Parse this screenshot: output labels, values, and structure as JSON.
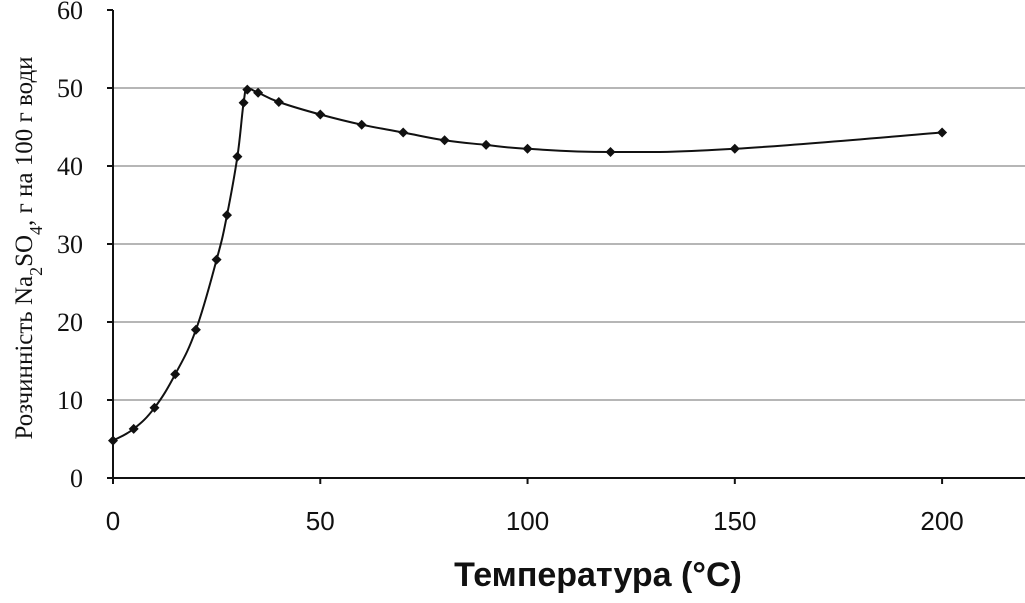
{
  "chart_data": {
    "type": "line",
    "title": "",
    "xlabel": "Температура (°С)",
    "ylabel": {
      "prefix": "Розчинність Na",
      "sub1": "2",
      "mid": "SO",
      "sub2": "4",
      "suffix": ", г на 100 г води"
    },
    "xlim": [
      0,
      220
    ],
    "ylim": [
      0,
      60
    ],
    "xticks": [
      0,
      50,
      100,
      150,
      200
    ],
    "yticks": [
      0,
      10,
      20,
      30,
      40,
      50,
      60
    ],
    "grid": {
      "horizontal": true,
      "vertical": false
    },
    "legend": "none",
    "series": [
      {
        "color": "#111111",
        "marker": "diamond",
        "x": [
          0,
          5,
          10,
          15,
          20,
          25,
          27.5,
          30,
          31.5,
          32.4,
          35,
          40,
          50,
          60,
          70,
          80,
          90,
          100,
          120,
          150,
          200
        ],
        "y": [
          4.8,
          6.3,
          9.0,
          13.3,
          19.0,
          28.0,
          33.7,
          41.2,
          48.1,
          49.8,
          49.4,
          48.2,
          46.6,
          45.3,
          44.3,
          43.3,
          42.7,
          42.2,
          41.8,
          42.2,
          44.3
        ]
      }
    ]
  }
}
